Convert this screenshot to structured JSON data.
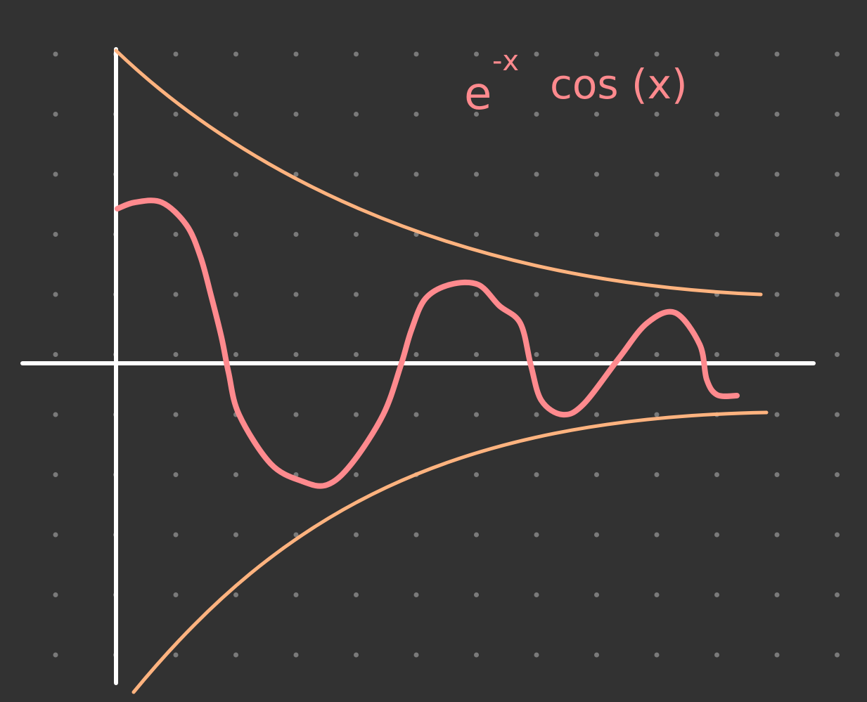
{
  "label": {
    "base": "e",
    "exponent": "-x",
    "rest": "cos (x)"
  }
}
